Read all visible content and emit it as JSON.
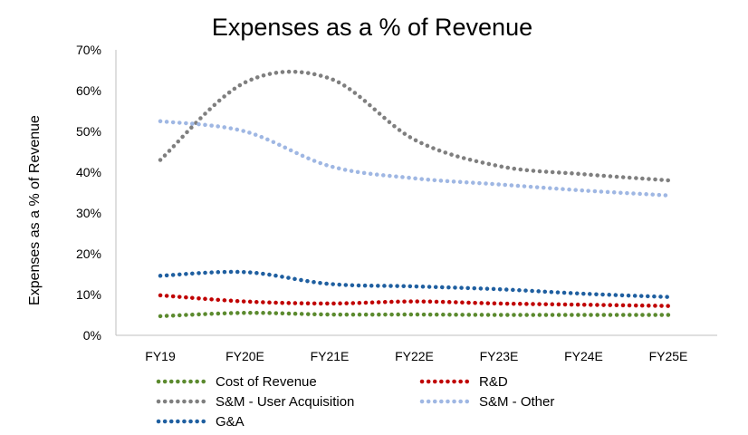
{
  "chart_data": {
    "type": "line",
    "title": "Expenses as a % of Revenue",
    "xlabel": "",
    "ylabel": "Expenses as a % of Revenue",
    "categories": [
      "FY19",
      "FY20E",
      "FY21E",
      "FY22E",
      "FY23E",
      "FY24E",
      "FY25E"
    ],
    "ylim": [
      0,
      70
    ],
    "yticks": [
      "0%",
      "10%",
      "20%",
      "30%",
      "40%",
      "50%",
      "60%",
      "70%"
    ],
    "grid": false,
    "legend": "bottom",
    "series": [
      {
        "name": "Cost of Revenue",
        "color": "#5b8a2e",
        "values": [
          4.7,
          5.5,
          5.1,
          5.1,
          5.0,
          5.0,
          5.0
        ]
      },
      {
        "name": "R&D",
        "color": "#c00000",
        "values": [
          9.8,
          8.3,
          7.8,
          8.3,
          7.8,
          7.5,
          7.2
        ]
      },
      {
        "name": "S&M - User Acquisition",
        "color": "#7f7f7f",
        "values": [
          43.0,
          62.0,
          63.0,
          48.0,
          41.5,
          39.5,
          38.0
        ]
      },
      {
        "name": "S&M - Other",
        "color": "#9fb7e3",
        "values": [
          52.5,
          50.0,
          41.5,
          38.5,
          37.0,
          35.5,
          34.3
        ]
      },
      {
        "name": "G&A",
        "color": "#1f5fa0",
        "values": [
          14.6,
          15.5,
          12.6,
          12.0,
          11.3,
          10.2,
          9.4
        ]
      }
    ]
  }
}
